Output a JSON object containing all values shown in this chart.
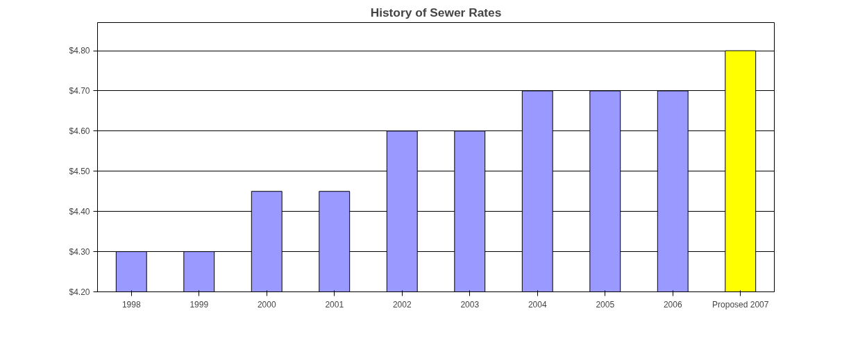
{
  "chart_data": {
    "type": "bar",
    "title": "History of Sewer Rates",
    "categories": [
      "1998",
      "1999",
      "2000",
      "2001",
      "2002",
      "2003",
      "2004",
      "2005",
      "2006",
      "Proposed 2007"
    ],
    "values": [
      4.3,
      4.3,
      4.45,
      4.45,
      4.6,
      4.6,
      4.7,
      4.7,
      4.7,
      4.8
    ],
    "colors": [
      "#9999ff",
      "#9999ff",
      "#9999ff",
      "#9999ff",
      "#9999ff",
      "#9999ff",
      "#9999ff",
      "#9999ff",
      "#9999ff",
      "#ffff00"
    ],
    "ylim": [
      4.2,
      4.87
    ],
    "yticks": [
      {
        "value": 4.2,
        "label": "$4.20"
      },
      {
        "value": 4.3,
        "label": "$4.30"
      },
      {
        "value": 4.4,
        "label": "$4.40"
      },
      {
        "value": 4.5,
        "label": "$4.50"
      },
      {
        "value": 4.6,
        "label": "$4.60"
      },
      {
        "value": 4.7,
        "label": "$4.70"
      },
      {
        "value": 4.8,
        "label": "$4.80"
      }
    ],
    "grid": "y"
  }
}
